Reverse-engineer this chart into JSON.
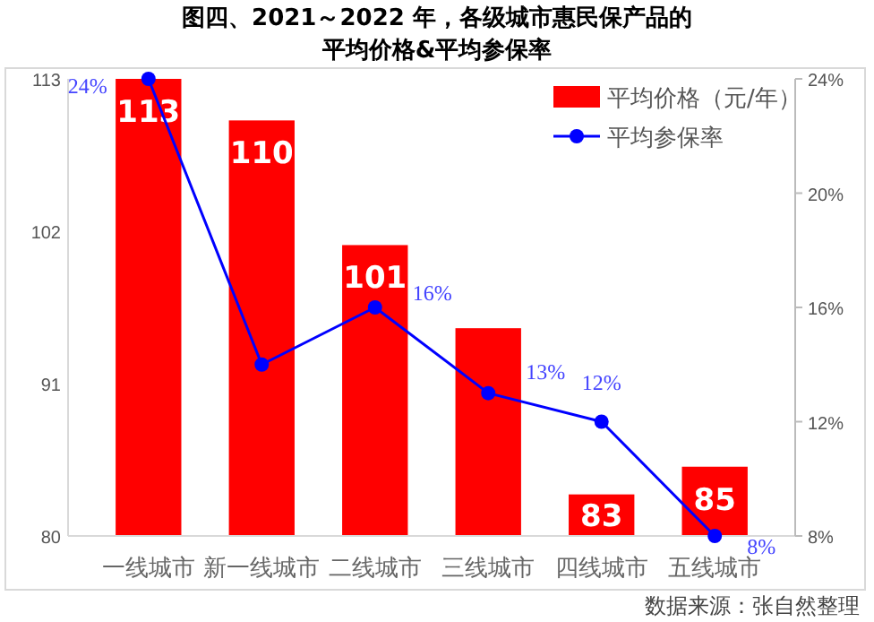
{
  "chart_data": {
    "type": "bar",
    "title": "图四、2021～2022 年，各级城市惠民保产品的平均价格&平均参保率",
    "categories": [
      "一线城市",
      "新一线城市",
      "二线城市",
      "三线城市",
      "四线城市",
      "五线城市"
    ],
    "series": [
      {
        "name": "平均价格（元/年）",
        "color": "#ff0000",
        "values": [
          113,
          110,
          101,
          95,
          83,
          85
        ],
        "value_labels": [
          "113",
          "110",
          "101",
          null,
          "83",
          "85"
        ]
      },
      {
        "name": "平均参保率",
        "type": "line",
        "axis": "y2",
        "color": "#0000ff",
        "marker": "circle",
        "values": [
          24,
          14,
          16,
          13,
          12,
          8
        ],
        "value_labels": [
          "24%",
          null,
          "16%",
          "13%",
          "12%",
          "8%"
        ]
      }
    ],
    "ylim": [
      80,
      113
    ],
    "yticks": [
      80,
      91,
      102,
      113
    ],
    "y2lim": [
      8,
      24
    ],
    "y2ticks": [
      {
        "value": 8,
        "label": "8%"
      },
      {
        "value": 12,
        "label": "12%"
      },
      {
        "value": 16,
        "label": "16%"
      },
      {
        "value": 20,
        "label": "20%"
      },
      {
        "value": 24,
        "label": "24%"
      }
    ],
    "grid": false,
    "legend": "top right",
    "annotations": [
      "数据来源：张自然整理"
    ]
  }
}
